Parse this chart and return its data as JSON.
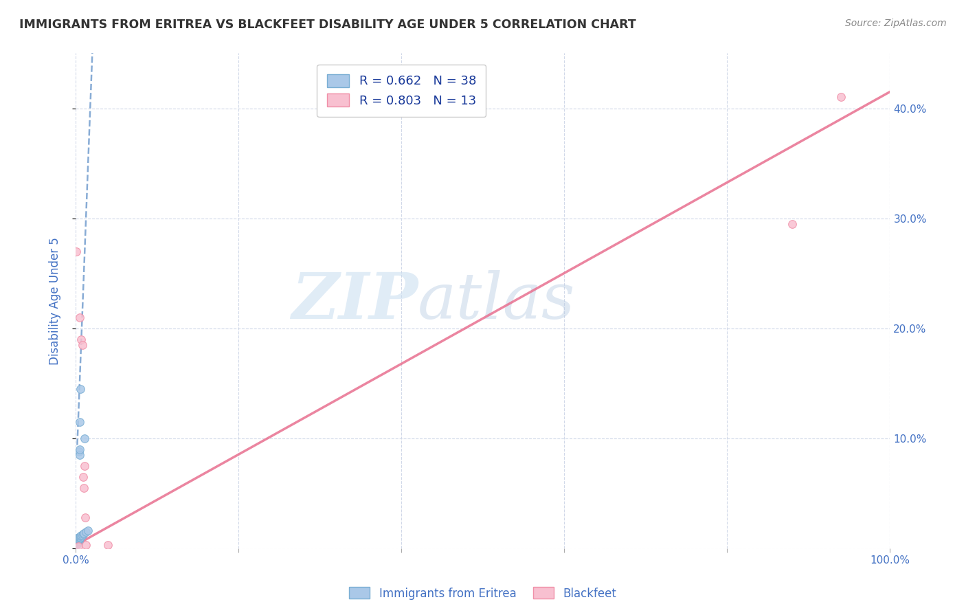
{
  "title": "IMMIGRANTS FROM ERITREA VS BLACKFEET DISABILITY AGE UNDER 5 CORRELATION CHART",
  "source": "Source: ZipAtlas.com",
  "ylabel": "Disability Age Under 5",
  "xlim": [
    0.0,
    1.0
  ],
  "ylim": [
    0.0,
    0.45
  ],
  "xticks": [
    0.0,
    0.2,
    0.4,
    0.6,
    0.8,
    1.0
  ],
  "xtick_labels": [
    "0.0%",
    "",
    "",
    "",
    "",
    "100.0%"
  ],
  "yticks": [
    0.0,
    0.1,
    0.2,
    0.3,
    0.4
  ],
  "ytick_labels": [
    "",
    "10.0%",
    "20.0%",
    "30.0%",
    "40.0%"
  ],
  "watermark_zip": "ZIP",
  "watermark_atlas": "atlas",
  "legend_entries": [
    {
      "label": "R = 0.662   N = 38"
    },
    {
      "label": "R = 0.803   N = 13"
    }
  ],
  "legend_labels_bottom": [
    "Immigrants from Eritrea",
    "Blackfeet"
  ],
  "blue_scatter_x": [
    0.001,
    0.001,
    0.001,
    0.002,
    0.002,
    0.002,
    0.002,
    0.002,
    0.003,
    0.003,
    0.003,
    0.003,
    0.003,
    0.003,
    0.003,
    0.003,
    0.003,
    0.004,
    0.004,
    0.004,
    0.004,
    0.004,
    0.004,
    0.004,
    0.005,
    0.005,
    0.005,
    0.005,
    0.006,
    0.006,
    0.006,
    0.007,
    0.008,
    0.009,
    0.01,
    0.011,
    0.013,
    0.015
  ],
  "blue_scatter_y": [
    0.004,
    0.005,
    0.006,
    0.004,
    0.005,
    0.006,
    0.007,
    0.008,
    0.005,
    0.006,
    0.006,
    0.007,
    0.007,
    0.008,
    0.008,
    0.009,
    0.01,
    0.006,
    0.007,
    0.008,
    0.009,
    0.009,
    0.01,
    0.088,
    0.085,
    0.09,
    0.01,
    0.115,
    0.01,
    0.011,
    0.145,
    0.012,
    0.012,
    0.013,
    0.014,
    0.1,
    0.015,
    0.016
  ],
  "pink_scatter_x": [
    0.003,
    0.005,
    0.007,
    0.008,
    0.009,
    0.01,
    0.011,
    0.012,
    0.013,
    0.04,
    0.88,
    0.94,
    0.001
  ],
  "pink_scatter_y": [
    0.002,
    0.21,
    0.19,
    0.185,
    0.065,
    0.055,
    0.075,
    0.028,
    0.003,
    0.003,
    0.295,
    0.41,
    0.27
  ],
  "blue_line_x": [
    0.002,
    0.021
  ],
  "blue_line_y": [
    0.094,
    0.46
  ],
  "pink_line_x": [
    0.0,
    1.0
  ],
  "pink_line_y": [
    0.003,
    0.415
  ],
  "scatter_size": 70,
  "blue_color": "#7bafd4",
  "blue_fill": "#aac8e8",
  "pink_color": "#f090a8",
  "pink_fill": "#f8c0d0",
  "blue_line_color": "#6090c8",
  "pink_line_color": "#e87090",
  "grid_color": "#d0d8e8",
  "title_color": "#333333",
  "tick_color": "#4472c4",
  "background_color": "#ffffff"
}
